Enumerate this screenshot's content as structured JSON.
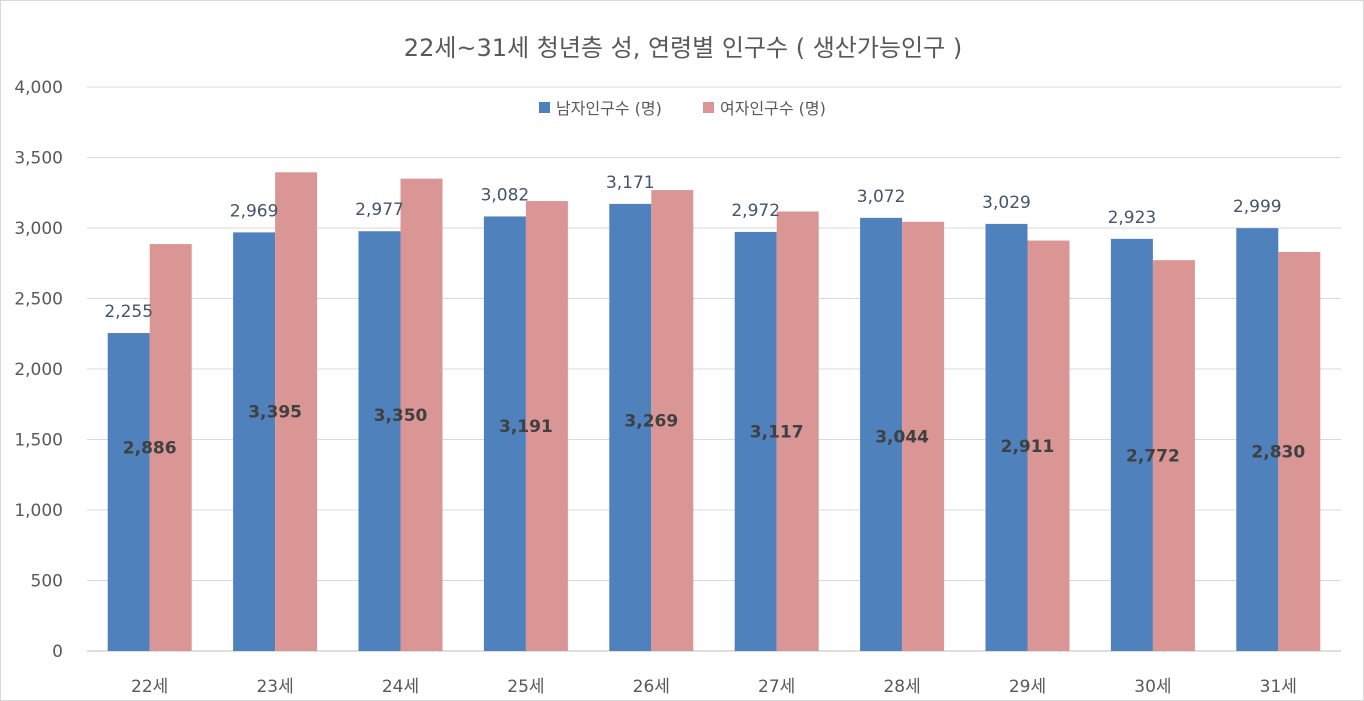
{
  "chart_data": {
    "type": "bar",
    "title": "22세~31세 청년층 성, 연령별 인구수 ( 생산가능인구 )",
    "xlabel": "",
    "ylabel": "",
    "ylim": [
      0,
      4000
    ],
    "yticks": [
      "0",
      "500",
      "1,000",
      "1,500",
      "2,000",
      "2,500",
      "3,000",
      "3,500",
      "4,000"
    ],
    "grid": true,
    "legend_position": "top-center",
    "categories": [
      "22세",
      "23세",
      "24세",
      "25세",
      "26세",
      "27세",
      "28세",
      "29세",
      "30세",
      "31세"
    ],
    "series": [
      {
        "name": "남자인구수 (명)",
        "color": "#4f81bd",
        "values": [
          2255,
          2969,
          2977,
          3082,
          3171,
          2972,
          3072,
          3029,
          2923,
          2999
        ],
        "labels": [
          "2,255",
          "2,969",
          "2,977",
          "3,082",
          "3,171",
          "2,972",
          "3,072",
          "3,029",
          "2,923",
          "2,999"
        ]
      },
      {
        "name": "여자인구수 (명)",
        "color": "#d99694",
        "values": [
          2886,
          3395,
          3350,
          3191,
          3269,
          3117,
          3044,
          2911,
          2772,
          2830
        ],
        "labels": [
          "2,886",
          "3,395",
          "3,350",
          "3,191",
          "3,269",
          "3,117",
          "3,044",
          "2,911",
          "2,772",
          "2,830"
        ]
      }
    ]
  }
}
